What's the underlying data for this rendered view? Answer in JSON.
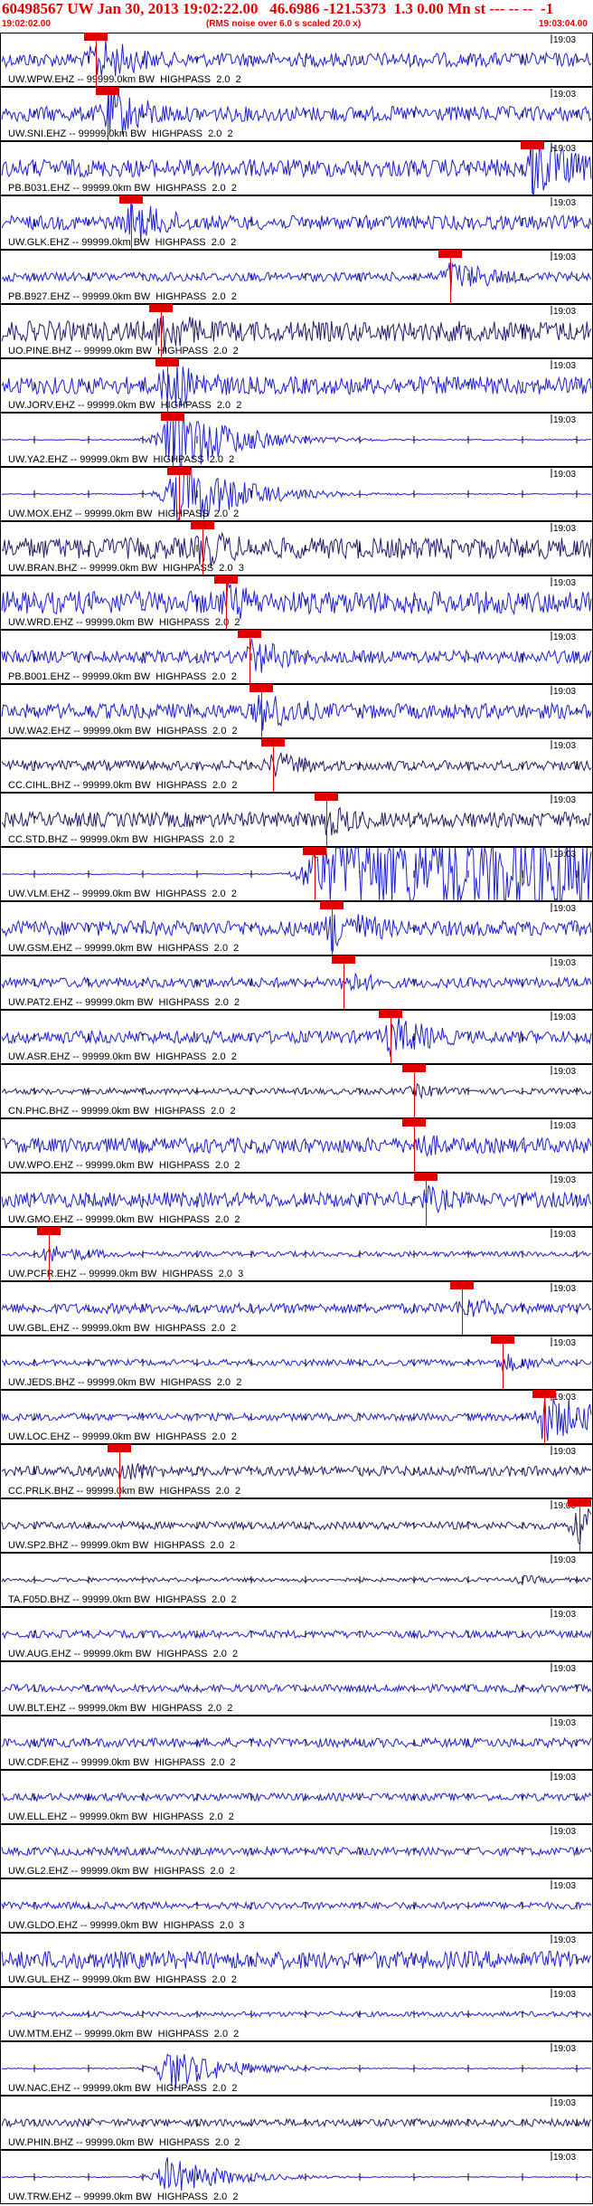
{
  "header": {
    "title": "60498567 UW Jan 30, 2013 19:02:22.00   46.6986 -121.5373  1.3 0.00 Mn st --- -- --  -1",
    "start_time": "19:02:02.00",
    "note": "(RMS noise over 6.0 s scaled 20.0 x)",
    "end_time": "19:03:04.00"
  },
  "tick_label": "19:03",
  "panels": [
    {
      "label": "UW.WPW.EHZ -- 99999.0km BW  HIGHPASS  2.0  2",
      "pick": true,
      "color": "#1f1fd6",
      "amp": 0.28,
      "burst": 0.16,
      "burst_amp": 1.0
    },
    {
      "label": "UW.SNI.EHZ -- 99999.0km BW  HIGHPASS  2.0  2",
      "pick": true,
      "color": "#1f1fd6",
      "amp": 0.3,
      "burst": 0.18,
      "burst_amp": 1.1
    },
    {
      "label": "PB.B031.EHZ -- 99999.0km BW  HIGHPASS  2.0  2",
      "pick": true,
      "color": "#1f1fd6",
      "amp": 0.35,
      "burst": 0.9,
      "burst_amp": 1.3
    },
    {
      "label": "UW.GLK.EHZ -- 99999.0km BW  HIGHPASS  2.0  2",
      "pick": true,
      "color": "#1f1fd6",
      "amp": 0.28,
      "burst": 0.22,
      "burst_amp": 0.9
    },
    {
      "label": "PB.B927.EHZ -- 99999.0km BW  HIGHPASS  2.0  2",
      "pick": true,
      "color": "#1f1fd6",
      "amp": 0.18,
      "burst": 0.76,
      "burst_amp": 0.7
    },
    {
      "label": "UO.PINE.BHZ -- 99999.0km BW  HIGHPASS  2.0  2",
      "pick": true,
      "color": "#2a1a6e",
      "amp": 0.4,
      "burst": 0.27,
      "burst_amp": 1.0
    },
    {
      "label": "UW.JORV.EHZ -- 99999.0km BW  HIGHPASS  2.0  2",
      "pick": true,
      "color": "#1f1fd6",
      "amp": 0.35,
      "burst": 0.28,
      "burst_amp": 1.1
    },
    {
      "label": "UW.YA2.EHZ -- 99999.0km BW  HIGHPASS  2.0  2",
      "pick": true,
      "color": "#1f1fd6",
      "amp": 0.02,
      "burst": 0.29,
      "burst_amp": 1.6
    },
    {
      "label": "UW.MOX.EHZ -- 99999.0km BW  HIGHPASS  2.0  2",
      "pick": true,
      "color": "#1f1fd6",
      "amp": 0.02,
      "burst": 0.3,
      "burst_amp": 1.6
    },
    {
      "label": "UW.BRAN.BHZ -- 99999.0km BW  HIGHPASS  2.0  3",
      "pick": true,
      "color": "#2a1a6e",
      "amp": 0.42,
      "burst": 0.34,
      "burst_amp": 0.9
    },
    {
      "label": "UW.WRD.EHZ -- 99999.0km BW  HIGHPASS  2.0  2",
      "pick": true,
      "color": "#1f1fd6",
      "amp": 0.45,
      "burst": 0.38,
      "burst_amp": 0.9
    },
    {
      "label": "PB.B001.EHZ -- 99999.0km BW  HIGHPASS  2.0  2",
      "pick": true,
      "color": "#1f1fd6",
      "amp": 0.25,
      "burst": 0.42,
      "burst_amp": 0.8
    },
    {
      "label": "UW.WA2.EHZ -- 99999.0km BW  HIGHPASS  2.0  2",
      "pick": true,
      "color": "#1f1fd6",
      "amp": 0.3,
      "burst": 0.44,
      "burst_amp": 0.9
    },
    {
      "label": "CC.CIHL.BHZ -- 99999.0km BW  HIGHPASS  2.0  2",
      "pick": true,
      "color": "#2a1a6e",
      "amp": 0.2,
      "burst": 0.46,
      "burst_amp": 0.6
    },
    {
      "label": "CC.STD.BHZ -- 99999.0km BW  HIGHPASS  2.0  2",
      "pick": true,
      "color": "#2a1a6e",
      "amp": 0.3,
      "burst": 0.55,
      "burst_amp": 0.7
    },
    {
      "label": "UW.VLM.EHZ -- 99999.0km BW  HIGHPASS  2.0  2",
      "pick": true,
      "color": "#1f1fd6",
      "amp": 0.02,
      "burst": 0.53,
      "burst_amp": 1.6,
      "saturate": true
    },
    {
      "label": "UW.GSM.EHZ -- 99999.0km BW  HIGHPASS  2.0  2",
      "pick": true,
      "color": "#1f1fd6",
      "amp": 0.3,
      "burst": 0.56,
      "burst_amp": 1.0
    },
    {
      "label": "UW.PAT2.EHZ -- 99999.0km BW  HIGHPASS  2.0  2",
      "pick": true,
      "color": "#1f1fd6",
      "amp": 0.2,
      "burst": 0.58,
      "burst_amp": 0.5
    },
    {
      "label": "UW.ASR.EHZ -- 99999.0km BW  HIGHPASS  2.0  2",
      "pick": true,
      "color": "#1f1fd6",
      "amp": 0.25,
      "burst": 0.66,
      "burst_amp": 0.9
    },
    {
      "label": "CN.PHC.BHZ -- 99999.0km BW  HIGHPASS  2.0  2",
      "pick": true,
      "color": "#2a1a6e",
      "amp": 0.12,
      "burst": 0.7,
      "burst_amp": 0.3
    },
    {
      "label": "UW.WPO.EHZ -- 99999.0km BW  HIGHPASS  2.0  2",
      "pick": true,
      "color": "#1f1fd6",
      "amp": 0.3,
      "burst": 0.7,
      "burst_amp": 0.6
    },
    {
      "label": "UW.GMO.EHZ -- 99999.0km BW  HIGHPASS  2.0  2",
      "pick": true,
      "color": "#1f1fd6",
      "amp": 0.3,
      "burst": 0.72,
      "burst_amp": 0.6
    },
    {
      "label": "UW.PCFR.EHZ -- 99999.0km BW  HIGHPASS  2.0  3",
      "pick": true,
      "color": "#1f1fd6",
      "amp": 0.1,
      "burst": 0.08,
      "burst_amp": 0.4
    },
    {
      "label": "UW.GBL.EHZ -- 99999.0km BW  HIGHPASS  2.0  2",
      "pick": true,
      "color": "#1f1fd6",
      "amp": 0.2,
      "burst": 0.78,
      "burst_amp": 0.5
    },
    {
      "label": "UW.JEDS.BHZ -- 99999.0km BW  HIGHPASS  2.0  2",
      "pick": true,
      "color": "#1f1fd6",
      "amp": 0.12,
      "burst": 0.85,
      "burst_amp": 0.4
    },
    {
      "label": "UW.LOC.EHZ -- 99999.0km BW  HIGHPASS  2.0  2",
      "pick": true,
      "color": "#1f1fd6",
      "amp": 0.15,
      "burst": 0.92,
      "burst_amp": 1.1
    },
    {
      "label": "CC.PRLK.BHZ -- 99999.0km BW  HIGHPASS  2.0  2",
      "pick": true,
      "color": "#2a1a6e",
      "amp": 0.2,
      "burst": 0.2,
      "burst_amp": 0.5
    },
    {
      "label": "UW.SP2.BHZ -- 99999.0km BW  HIGHPASS  2.0  2",
      "pick": true,
      "color": "#2a1a6e",
      "amp": 0.15,
      "burst": 0.98,
      "burst_amp": 0.8
    },
    {
      "label": "TA.F05D.BHZ -- 99999.0km BW  HIGHPASS  2.0  2",
      "pick": false,
      "color": "#2a1a6e",
      "amp": 0.08,
      "burst": 0.88,
      "burst_amp": 0.2
    },
    {
      "label": "UW.AUG.EHZ -- 99999.0km BW  HIGHPASS  2.0  2",
      "pick": false,
      "color": "#1f1fd6",
      "amp": 0.15,
      "burst": 0.5,
      "burst_amp": 0.15
    },
    {
      "label": "UW.BLT.EHZ -- 99999.0km BW  HIGHPASS  2.0  2",
      "pick": false,
      "color": "#1f1fd6",
      "amp": 0.15,
      "burst": 0.5,
      "burst_amp": 0.15
    },
    {
      "label": "UW.CDF.EHZ -- 99999.0km BW  HIGHPASS  2.0  2",
      "pick": false,
      "color": "#1f1fd6",
      "amp": 0.18,
      "burst": 0.5,
      "burst_amp": 0.18
    },
    {
      "label": "UW.ELL.EHZ -- 99999.0km BW  HIGHPASS  2.0  2",
      "pick": false,
      "color": "#1f1fd6",
      "amp": 0.15,
      "burst": 0.5,
      "burst_amp": 0.15
    },
    {
      "label": "UW.GL2.EHZ -- 99999.0km BW  HIGHPASS  2.0  2",
      "pick": false,
      "color": "#1f1fd6",
      "amp": 0.16,
      "burst": 0.5,
      "burst_amp": 0.16
    },
    {
      "label": "UW.GLDO.EHZ -- 99999.0km BW  HIGHPASS  2.0  3",
      "pick": false,
      "color": "#1f1fd6",
      "amp": 0.14,
      "burst": 0.5,
      "burst_amp": 0.14
    },
    {
      "label": "UW.GUL.EHZ -- 99999.0km BW  HIGHPASS  2.0  2",
      "pick": false,
      "color": "#1f1fd6",
      "amp": 0.35,
      "burst": 0.4,
      "burst_amp": 0.4
    },
    {
      "label": "UW.MTM.EHZ -- 99999.0km BW  HIGHPASS  2.0  2",
      "pick": false,
      "color": "#1f1fd6",
      "amp": 0.1,
      "burst": 0.5,
      "burst_amp": 0.1
    },
    {
      "label": "UW.NAC.EHZ -- 99999.0km BW  HIGHPASS  2.0  2",
      "pick": false,
      "color": "#1f1fd6",
      "amp": 0.02,
      "burst": 0.28,
      "burst_amp": 0.9
    },
    {
      "label": "UW.PHIN.BHZ -- 99999.0km BW  HIGHPASS  2.0  2",
      "pick": false,
      "color": "#2a1a6e",
      "amp": 0.15,
      "burst": 0.5,
      "burst_amp": 0.15
    },
    {
      "label": "UW.TRW.EHZ -- 99999.0km BW  HIGHPASS  2.0  2",
      "pick": false,
      "color": "#1f1fd6",
      "amp": 0.02,
      "burst": 0.28,
      "burst_amp": 0.8
    }
  ]
}
